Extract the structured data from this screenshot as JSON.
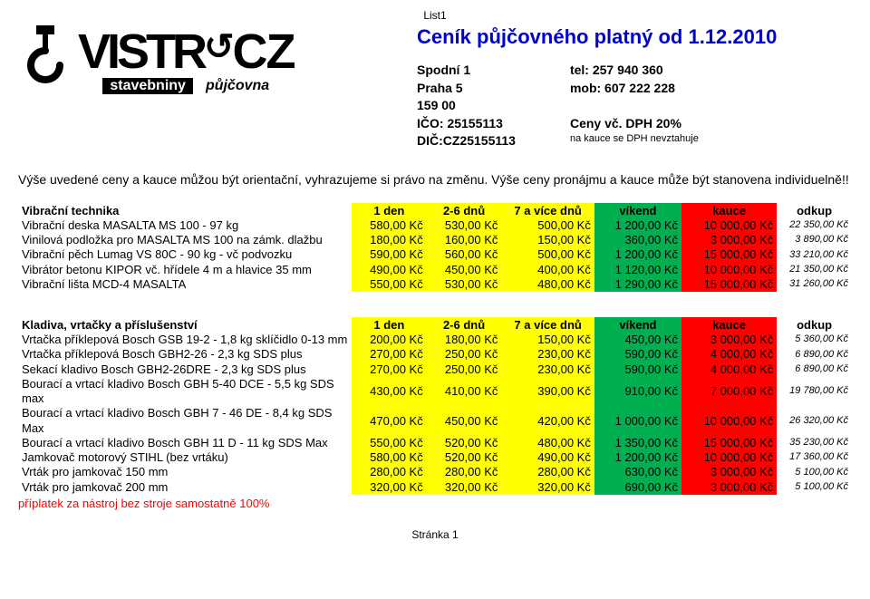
{
  "page_label_top": "List1",
  "logo": {
    "brand": "VISTRCZ",
    "sub1": "stavebniny",
    "sub2": "půjčovna"
  },
  "title": "Ceník půjčovného platný od 1.12.2010",
  "company": {
    "addr1": "Spodní 1",
    "addr2": "Praha 5",
    "zip": "159 00",
    "ico": "IČO: 25155113",
    "dic": "DIČ:CZ25155113"
  },
  "contact": {
    "tel": "tel: 257 940 360",
    "mob": "mob: 607 222 228",
    "vat": "Ceny vč. DPH 20%",
    "note": "na kauce se DPH nevztahuje"
  },
  "notice": "Výše uvedené ceny a kauce můžou být orientační, vyhrazujeme si právo na změnu. Výše ceny pronájmu a kauce může být stanovena individuelně!!",
  "cols": {
    "c1": "1 den",
    "c2": "2-6 dnů",
    "c3": "7 a více dnů",
    "c4": "víkend",
    "c5": "kauce",
    "c6": "odkup"
  },
  "section1": {
    "title": "Vibrační technika",
    "rows": [
      {
        "name": "Vibrační deska MASALTA MS 100 - 97 kg",
        "d1": "580,00 Kč",
        "d2": "530,00 Kč",
        "d3": "500,00 Kč",
        "wk": "1 200,00 Kč",
        "ka": "10 000,00 Kč",
        "od": "22 350,00 Kč"
      },
      {
        "name": "Vinilová podložka pro MASALTA MS 100 na zámk. dlažbu",
        "d1": "180,00 Kč",
        "d2": "160,00 Kč",
        "d3": "150,00 Kč",
        "wk": "360,00 Kč",
        "ka": "3 000,00 Kč",
        "od": "3 890,00 Kč"
      },
      {
        "name": "Vibrační pěch Lumag VS 80C - 90 kg - vč podvozku",
        "d1": "590,00 Kč",
        "d2": "560,00 Kč",
        "d3": "500,00 Kč",
        "wk": "1 200,00 Kč",
        "ka": "15 000,00 Kč",
        "od": "33 210,00 Kč"
      },
      {
        "name": "Vibrátor betonu KIPOR vč. hřídele 4 m a hlavice 35 mm",
        "d1": "490,00 Kč",
        "d2": "450,00 Kč",
        "d3": "400,00 Kč",
        "wk": "1 120,00 Kč",
        "ka": "10 000,00 Kč",
        "od": "21 350,00 Kč"
      },
      {
        "name": "Vibrační lišta MCD-4 MASALTA",
        "d1": "550,00 Kč",
        "d2": "530,00 Kč",
        "d3": "480,00 Kč",
        "wk": "1 290,00 Kč",
        "ka": "15 000,00 Kč",
        "od": "31 260,00 Kč"
      }
    ]
  },
  "section2": {
    "title": "Kladiva, vrtačky a příslušenství",
    "rows": [
      {
        "name": "Vrtačka příklepová  Bosch GSB 19-2  - 1,8 kg sklíčidlo 0-13 mm",
        "d1": "200,00 Kč",
        "d2": "180,00 Kč",
        "d3": "150,00 Kč",
        "wk": "450,00 Kč",
        "ka": "3 000,00 Kč",
        "od": "5 360,00 Kč"
      },
      {
        "name": "Vrtačka příklepová  Bosch GBH2-26 - 2,3 kg SDS plus",
        "d1": "270,00 Kč",
        "d2": "250,00 Kč",
        "d3": "230,00 Kč",
        "wk": "590,00 Kč",
        "ka": "4 000,00 Kč",
        "od": "6 890,00 Kč"
      },
      {
        "name": "Sekací kladivo Bosch GBH2-26DRE - 2,3 kg SDS plus",
        "d1": "270,00 Kč",
        "d2": "250,00 Kč",
        "d3": "230,00 Kč",
        "wk": "590,00 Kč",
        "ka": "4 000,00 Kč",
        "od": "6 890,00 Kč"
      },
      {
        "name": "Bourací a vrtací kladivo Bosch GBH 5-40 DCE - 5,5 kg  SDS max",
        "d1": "430,00 Kč",
        "d2": "410,00 Kč",
        "d3": "390,00 Kč",
        "wk": "910,00 Kč",
        "ka": "7 000,00 Kč",
        "od": "19 780,00 Kč"
      },
      {
        "name": "Bourací a vrtací kladivo Bosch GBH 7 - 46 DE  - 8,4 kg SDS Max",
        "d1": "470,00 Kč",
        "d2": "450,00 Kč",
        "d3": "420,00 Kč",
        "wk": "1 000,00 Kč",
        "ka": "10 000,00 Kč",
        "od": "26 320,00 Kč"
      },
      {
        "name": "Bourací a vrtací kladivo Bosch GBH 11 D - 11 kg SDS Max",
        "d1": "550,00 Kč",
        "d2": "520,00 Kč",
        "d3": "480,00 Kč",
        "wk": "1 350,00 Kč",
        "ka": "15 000,00 Kč",
        "od": "35 230,00 Kč"
      },
      {
        "name": "Jamkovač motorový STIHL (bez vrtáku)",
        "d1": "580,00 Kč",
        "d2": "520,00 Kč",
        "d3": "490,00 Kč",
        "wk": "1 200,00 Kč",
        "ka": "10 000,00 Kč",
        "od": "17 360,00 Kč"
      },
      {
        "name": "Vrták pro jamkovač 150 mm",
        "d1": "280,00 Kč",
        "d2": "280,00 Kč",
        "d3": "280,00 Kč",
        "wk": "630,00 Kč",
        "ka": "3 000,00 Kč",
        "od": "5 100,00 Kč"
      },
      {
        "name": "Vrták pro jamkovač 200 mm",
        "d1": "320,00 Kč",
        "d2": "320,00 Kč",
        "d3": "320,00 Kč",
        "wk": "690,00 Kč",
        "ka": "3 000,00 Kč",
        "od": "5 100,00 Kč"
      }
    ],
    "addendum": "příplatek za nástroj bez stroje samostatně 100%"
  },
  "footer": "Stránka 1"
}
